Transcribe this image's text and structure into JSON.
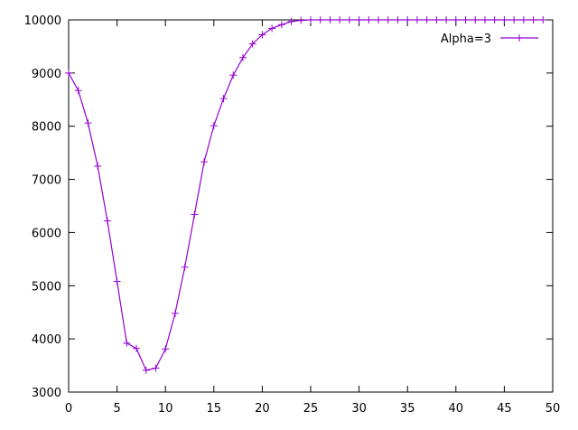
{
  "chart_data": {
    "type": "line",
    "title": "",
    "xlabel": "",
    "ylabel": "",
    "xlim": [
      0,
      50
    ],
    "ylim": [
      3000,
      10000
    ],
    "x_ticks": [
      0,
      5,
      10,
      15,
      20,
      25,
      30,
      35,
      40,
      45,
      50
    ],
    "y_ticks": [
      3000,
      4000,
      5000,
      6000,
      7000,
      8000,
      9000,
      10000
    ],
    "grid": false,
    "legend_position": "top-right",
    "series": [
      {
        "name": "Alpha=3",
        "color": "#9400d3",
        "marker": "plus",
        "x": [
          0,
          1,
          2,
          3,
          4,
          5,
          6,
          7,
          8,
          9,
          10,
          11,
          12,
          13,
          14,
          15,
          16,
          17,
          18,
          19,
          20,
          21,
          22,
          23,
          24,
          25,
          26,
          27,
          28,
          29,
          30,
          31,
          32,
          33,
          34,
          35,
          36,
          37,
          38,
          39,
          40,
          41,
          42,
          43,
          44,
          45,
          46,
          47,
          48,
          49
        ],
        "y": [
          9000,
          8670,
          8060,
          7250,
          6220,
          5080,
          3920,
          3820,
          3410,
          3450,
          3810,
          4480,
          5350,
          6340,
          7330,
          8010,
          8520,
          8960,
          9290,
          9550,
          9720,
          9840,
          9910,
          9970,
          9990,
          10000,
          10000,
          10000,
          10000,
          10000,
          10000,
          10000,
          10000,
          10000,
          10000,
          10000,
          10000,
          10000,
          10000,
          10000,
          10000,
          10000,
          10000,
          10000,
          10000,
          10000,
          10000,
          10000,
          10000,
          10000
        ]
      }
    ]
  }
}
